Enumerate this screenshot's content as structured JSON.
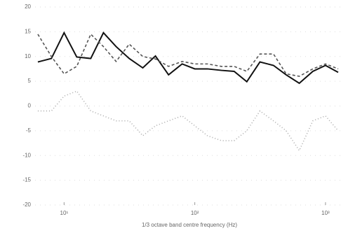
{
  "chart_data": {
    "type": "line",
    "x_label": "1/3 octave band centre frequency (Hz)",
    "x": [
      6.3,
      8,
      10,
      12.5,
      16,
      20,
      25,
      31.5,
      40,
      50,
      63,
      80,
      100,
      125,
      160,
      200,
      250,
      315,
      400,
      500,
      630,
      800,
      1000,
      1250
    ],
    "log_x": true,
    "xlim": [
      6,
      1380
    ],
    "xticks": [
      {
        "value": 10,
        "label": "10¹"
      },
      {
        "value": 100,
        "label": "10²"
      },
      {
        "value": 1000,
        "label": "10³"
      }
    ],
    "ylim": [
      -20,
      20
    ],
    "yticks": [
      -20,
      -15,
      -10,
      -5,
      0,
      5,
      10,
      15,
      20
    ],
    "grid": true,
    "series": [
      {
        "color": "#111111",
        "dash": "",
        "values": [
          8.9,
          9.6,
          14.8,
          9.9,
          9.6,
          14.8,
          12,
          9.6,
          7.7,
          10.1,
          6.3,
          8.5,
          7.5,
          7.5,
          7.2,
          7,
          4.9,
          8.9,
          8.2,
          6.3,
          4.6,
          7,
          8.2,
          6.8
        ]
      },
      {
        "color": "#555555",
        "dash": "4 3",
        "values": [
          14.5,
          10,
          6.5,
          8,
          14.5,
          12,
          9,
          12.5,
          10,
          9.5,
          8,
          9,
          8.5,
          8.5,
          8,
          8,
          7,
          10.5,
          10.5,
          6.5,
          6,
          7.5,
          8.5,
          7.5
        ]
      },
      {
        "color": "#aaaaaa",
        "dash": "1 3",
        "values": [
          -1,
          -1,
          2,
          3,
          -1,
          -2,
          -3,
          -3,
          -6,
          -4,
          -3,
          -2,
          -4,
          -6,
          -7,
          -7,
          -5,
          -1,
          -3,
          -5,
          -9,
          -3,
          -2,
          -5
        ]
      }
    ]
  }
}
